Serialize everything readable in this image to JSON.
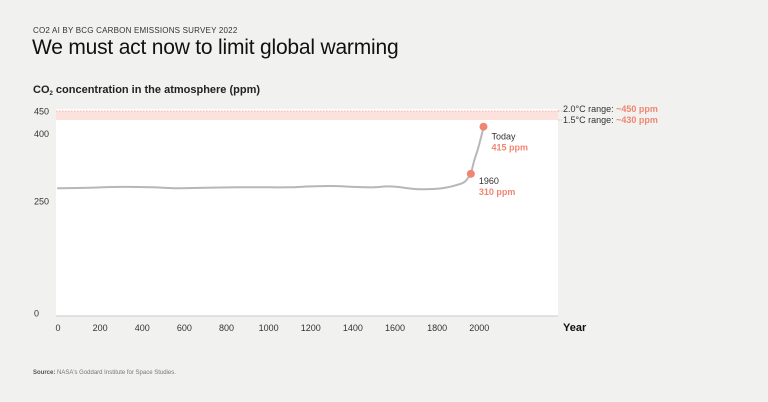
{
  "header": {
    "eyebrow": "CO2 AI BY BCG CARBON EMISSIONS SURVEY 2022",
    "headline": "We must act now to limit global warming"
  },
  "chart_title": {
    "prefix": "CO",
    "subscript": "2",
    "suffix": " concentration in the atmosphere (ppm)"
  },
  "source": {
    "label": "Source:",
    "text": "NASA's Goddard Institute for Space Studies."
  },
  "colors": {
    "background": "#f1f1ef",
    "plot_background": "#ffffff",
    "band": "#fde1dc",
    "line": "#b7b7b7",
    "accent": "#f08672",
    "axis": "#c9c9c9"
  },
  "chart_data": {
    "type": "line",
    "title": "CO2 concentration in the atmosphere (ppm)",
    "xlabel": "Year",
    "ylabel": "",
    "xlim": [
      0,
      2350
    ],
    "ylim": [
      0,
      450
    ],
    "x_ticks": [
      0,
      200,
      400,
      600,
      800,
      1000,
      1200,
      1400,
      1600,
      1800,
      2000
    ],
    "y_ticks": [
      0,
      250,
      400,
      450
    ],
    "band": {
      "from": 430,
      "to": 450
    },
    "series": [
      {
        "name": "CO2 (ppm)",
        "x": [
          0,
          150,
          300,
          450,
          550,
          700,
          850,
          1000,
          1100,
          1200,
          1300,
          1400,
          1500,
          1560,
          1610,
          1700,
          1800,
          1850,
          1900,
          1930,
          1950,
          1960,
          1975,
          1990,
          2005,
          2020
        ],
        "values": [
          278,
          279,
          281,
          280,
          278,
          279,
          280,
          280,
          280,
          282,
          283,
          281,
          280,
          282,
          281,
          276,
          277,
          280,
          286,
          292,
          303,
          310,
          338,
          360,
          385,
          415
        ]
      }
    ],
    "annotations": [
      {
        "x": 1960,
        "y": 310,
        "label": "1960",
        "value": "310 ppm"
      },
      {
        "x": 2020,
        "y": 415,
        "label": "Today",
        "value": "415 ppm"
      }
    ],
    "ranges": [
      {
        "label": "2.0°C range: ",
        "value": "~450 ppm"
      },
      {
        "label": "1.5°C range: ",
        "value": "~430 ppm"
      }
    ]
  }
}
